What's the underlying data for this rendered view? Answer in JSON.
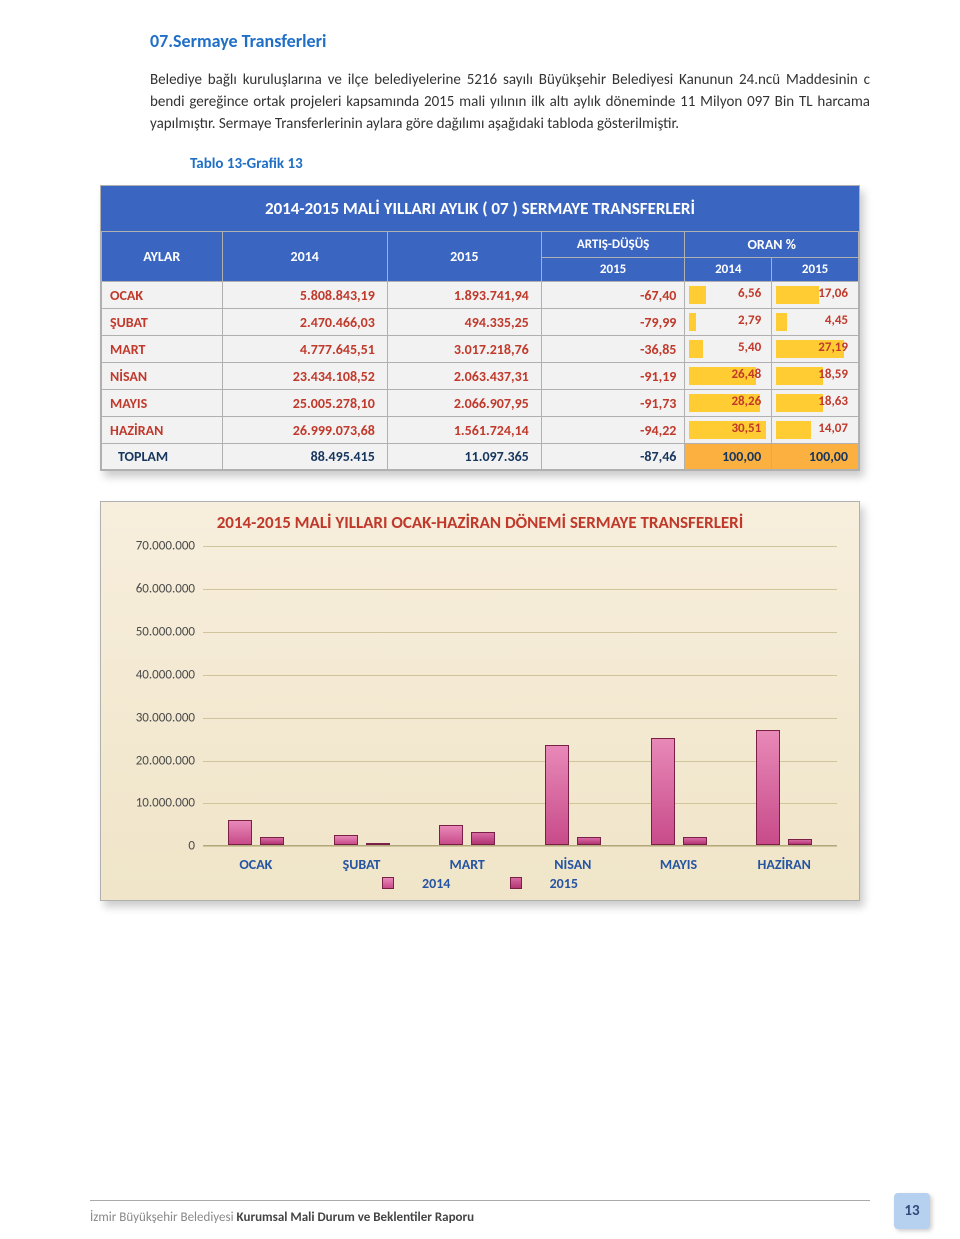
{
  "section": {
    "title": "07.Sermaye Transferleri"
  },
  "paragraph": "Belediye bağlı kuruluşlarına ve ilçe belediyelerine 5216 sayılı Büyükşehir Belediyesi Kanunun 24.ncü Maddesinin c bendi gereğince ortak projeleri kapsamında 2015 mali yılının ilk altı aylık döneminde 11 Milyon 097 Bin TL harcama yapılmıştır. Sermaye Transferlerinin aylara göre dağılımı aşağıdaki tabloda gösterilmiştir.",
  "table_caption": "Tablo 13-Grafik 13",
  "table": {
    "title": "2014-2015 MALİ YILLARI AYLIK ( 07 ) SERMAYE TRANSFERLERİ",
    "head": {
      "aylar": "AYLAR",
      "y2014": "2014",
      "y2015": "2015",
      "artis": "ARTIŞ-DÜŞÜŞ",
      "artis_sub": "2015",
      "oran": "ORAN %",
      "oran_2014": "2014",
      "oran_2015": "2015"
    },
    "rows": [
      {
        "m": "OCAK",
        "v14": "5.808.843,19",
        "v15": "1.893.741,94",
        "d": "-67,40",
        "p14": "6,56",
        "p15": "17,06"
      },
      {
        "m": "ŞUBAT",
        "v14": "2.470.466,03",
        "v15": "494.335,25",
        "d": "-79,99",
        "p14": "2,79",
        "p15": "4,45"
      },
      {
        "m": "MART",
        "v14": "4.777.645,51",
        "v15": "3.017.218,76",
        "d": "-36,85",
        "p14": "5,40",
        "p15": "27,19"
      },
      {
        "m": "NİSAN",
        "v14": "23.434.108,52",
        "v15": "2.063.437,31",
        "d": "-91,19",
        "p14": "26,48",
        "p15": "18,59"
      },
      {
        "m": "MAYIS",
        "v14": "25.005.278,10",
        "v15": "2.066.907,95",
        "d": "-91,73",
        "p14": "28,26",
        "p15": "18,63"
      },
      {
        "m": "HAZİRAN",
        "v14": "26.999.073,68",
        "v15": "1.561.724,14",
        "d": "-94,22",
        "p14": "30,51",
        "p15": "14,07"
      }
    ],
    "total": {
      "m": "TOPLAM",
      "v14": "88.495.415",
      "v15": "11.097.365",
      "d": "-87,46",
      "p14": "100,00",
      "p15": "100,00"
    }
  },
  "chart": {
    "title": "2014-2015  MALİ YILLARI OCAK-HAZİRAN DÖNEMİ SERMAYE TRANSFERLERİ",
    "ymax": 70000000,
    "ystep": 10000000,
    "yticks": [
      "0",
      "10.000.000",
      "20.000.000",
      "30.000.000",
      "40.000.000",
      "50.000.000",
      "60.000.000",
      "70.000.000"
    ],
    "categories": [
      "OCAK",
      "ŞUBAT",
      "MART",
      "NİSAN",
      "MAYIS",
      "HAZİRAN"
    ],
    "series": {
      "2014": [
        5808843,
        2470466,
        4777646,
        23434109,
        25005278,
        26999074
      ],
      "2015": [
        1893742,
        494335,
        3017219,
        2063437,
        2066908,
        1561724
      ]
    },
    "legend": {
      "s1": "2014",
      "s2": "2015"
    },
    "colors": {
      "bar2014": "#c84b8a",
      "bar2015": "#b23574",
      "grid": "#cfc49a",
      "bg_top": "#f7eedd",
      "bg_bot": "#f0e5c8",
      "xlabel": "#2554a2"
    }
  },
  "footer": {
    "org": "İzmir Büyükşehir Belediyesi",
    "report": "Kurumsal Mali Durum ve Beklentiler Raporu",
    "page": "13"
  }
}
